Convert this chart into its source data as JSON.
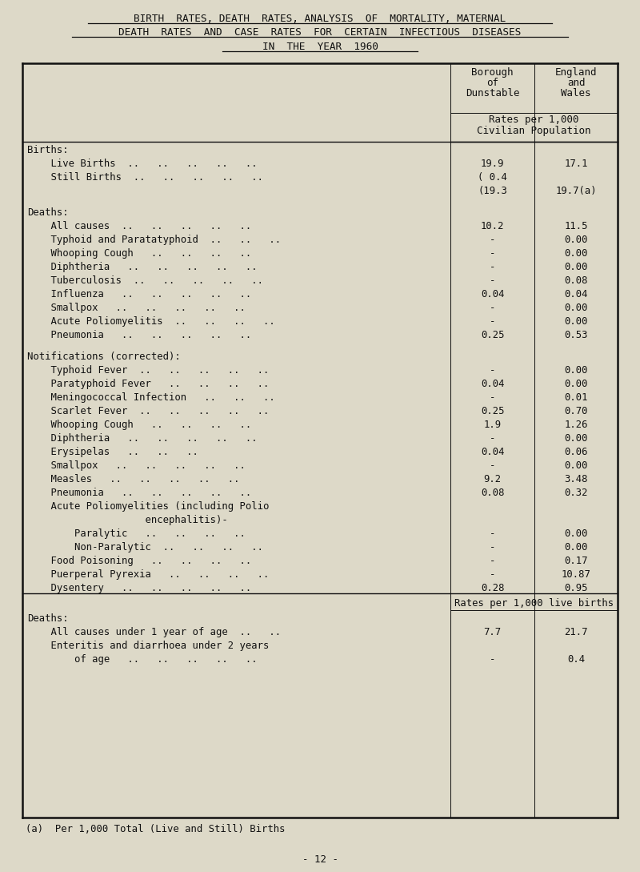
{
  "title_line1": "BIRTH  RATES, DEATH  RATES, ANALYSIS  OF  MORTALITY, MATERNAL",
  "title_line2": "DEATH  RATES  AND  CASE  RATES  FOR  CERTAIN  INFECTIOUS  DISEASES",
  "title_line3": "IN  THE  YEAR  1960",
  "bg_color": "#ddd9c8",
  "text_color": "#111111",
  "footnote": "(a)  Per 1,000 Total (Live and Still) Births",
  "page_num": "- 12 -",
  "rows": [
    {
      "label": "Births:",
      "col1": "",
      "col2": "",
      "type": "section"
    },
    {
      "label": "    Live Births  ..   ..   ..   ..   ..",
      "col1": "19.9",
      "col2": "17.1",
      "type": "data"
    },
    {
      "label": "    Still Births  ..   ..   ..   ..   ..",
      "col1": "( 0.4",
      "col2": "",
      "type": "data"
    },
    {
      "label": "",
      "col1": "(19.3",
      "col2": "19.7(a)",
      "type": "data"
    },
    {
      "label": "",
      "col1": "",
      "col2": "",
      "type": "spacer"
    },
    {
      "label": "Deaths:",
      "col1": "",
      "col2": "",
      "type": "section"
    },
    {
      "label": "    All causes  ..   ..   ..   ..   ..",
      "col1": "10.2",
      "col2": "11.5",
      "type": "data"
    },
    {
      "label": "    Typhoid and Paratatyphoid  ..   ..   ..",
      "col1": "-",
      "col2": "0.00",
      "type": "data"
    },
    {
      "label": "    Whooping Cough   ..   ..   ..   ..",
      "col1": "-",
      "col2": "0.00",
      "type": "data"
    },
    {
      "label": "    Diphtheria   ..   ..   ..   ..   ..",
      "col1": "-",
      "col2": "0.00",
      "type": "data"
    },
    {
      "label": "    Tuberculosis  ..   ..   ..   ..   ..",
      "col1": "-",
      "col2": "0.08",
      "type": "data"
    },
    {
      "label": "    Influenza   ..   ..   ..   ..   ..",
      "col1": "0.04",
      "col2": "0.04",
      "type": "data"
    },
    {
      "label": "    Smallpox   ..   ..   ..   ..   ..",
      "col1": "-",
      "col2": "0.00",
      "type": "data"
    },
    {
      "label": "    Acute Poliomyelitis  ..   ..   ..   ..",
      "col1": "-",
      "col2": "0.00",
      "type": "data"
    },
    {
      "label": "    Pneumonia   ..   ..   ..   ..   ..",
      "col1": "0.25",
      "col2": "0.53",
      "type": "data"
    },
    {
      "label": "",
      "col1": "",
      "col2": "",
      "type": "spacer"
    },
    {
      "label": "Notifications (corrected):",
      "col1": "",
      "col2": "",
      "type": "section"
    },
    {
      "label": "    Typhoid Fever  ..   ..   ..   ..   ..",
      "col1": "-",
      "col2": "0.00",
      "type": "data"
    },
    {
      "label": "    Paratyphoid Fever   ..   ..   ..   ..",
      "col1": "0.04",
      "col2": "0.00",
      "type": "data"
    },
    {
      "label": "    Meningococcal Infection   ..   ..   ..",
      "col1": "-",
      "col2": "0.01",
      "type": "data"
    },
    {
      "label": "    Scarlet Fever  ..   ..   ..   ..   ..",
      "col1": "0.25",
      "col2": "0.70",
      "type": "data"
    },
    {
      "label": "    Whooping Cough   ..   ..   ..   ..",
      "col1": "1.9",
      "col2": "1.26",
      "type": "data"
    },
    {
      "label": "    Diphtheria   ..   ..   ..   ..   ..",
      "col1": "-",
      "col2": "0.00",
      "type": "data"
    },
    {
      "label": "    Erysipelas   ..   ..   ..",
      "col1": "0.04",
      "col2": "0.06",
      "type": "data"
    },
    {
      "label": "    Smallpox   ..   ..   ..   ..   ..",
      "col1": "-",
      "col2": "0.00",
      "type": "data"
    },
    {
      "label": "    Measles   ..   ..   ..   ..   ..",
      "col1": "9.2",
      "col2": "3.48",
      "type": "data"
    },
    {
      "label": "    Pneumonia   ..   ..   ..   ..   ..",
      "col1": "0.08",
      "col2": "0.32",
      "type": "data"
    },
    {
      "label": "    Acute Poliomyelities (including Polio",
      "col1": "",
      "col2": "",
      "type": "data"
    },
    {
      "label": "                    encephalitis)-",
      "col1": "",
      "col2": "",
      "type": "data"
    },
    {
      "label": "        Paralytic   ..   ..   ..   ..",
      "col1": "-",
      "col2": "0.00",
      "type": "data"
    },
    {
      "label": "        Non-Paralytic  ..   ..   ..   ..",
      "col1": "-",
      "col2": "0.00",
      "type": "data"
    },
    {
      "label": "    Food Poisoning   ..   ..   ..   ..",
      "col1": "-",
      "col2": "0.17",
      "type": "data"
    },
    {
      "label": "    Puerperal Pyrexia   ..   ..   ..   ..",
      "col1": "-",
      "col2": "10.87",
      "type": "data"
    },
    {
      "label": "    Dysentery   ..   ..   ..   ..   ..",
      "col1": "0.28",
      "col2": "0.95",
      "type": "data"
    }
  ],
  "rows2": [
    {
      "label": "Deaths:",
      "col1": "",
      "col2": "",
      "type": "section"
    },
    {
      "label": "    All causes under 1 year of age  ..   ..",
      "col1": "7.7",
      "col2": "21.7",
      "type": "data"
    },
    {
      "label": "    Enteritis and diarrhoea under 2 years",
      "col1": "",
      "col2": "",
      "type": "data"
    },
    {
      "label": "        of age   ..   ..   ..   ..   ..",
      "col1": "-",
      "col2": "0.4",
      "type": "data"
    }
  ]
}
